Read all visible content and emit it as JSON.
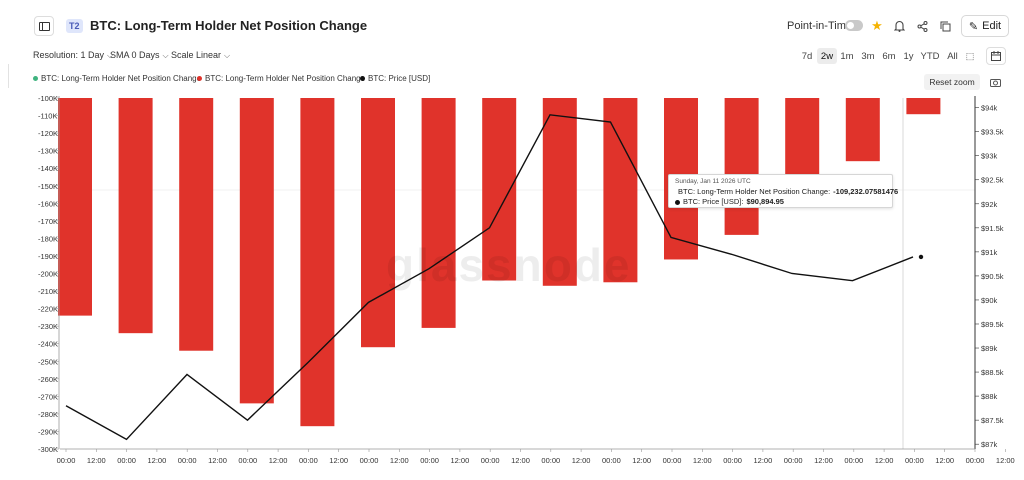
{
  "header": {
    "tier_badge": "T2",
    "title": "BTC: Long-Term Holder Net Position Change",
    "point_in_time_label": "Point-in-Time",
    "edit_label": "Edit"
  },
  "controls": {
    "resolution": "Resolution: 1 Day",
    "sma": "SMA 0 Days",
    "scale": "Scale Linear",
    "ranges": [
      "7d",
      "2w",
      "1m",
      "3m",
      "6m",
      "1y",
      "YTD",
      "All"
    ],
    "active_range": "2w"
  },
  "legend": {
    "items": [
      {
        "label": "BTC: Long-Term Holder Net Position Change",
        "color": "#3fb37f"
      },
      {
        "label": "BTC: Long-Term Holder Net Position Change",
        "color": "#e0332b"
      },
      {
        "label": "BTC: Price [USD]",
        "color": "#111111"
      }
    ],
    "reset_zoom": "Reset zoom"
  },
  "tooltip": {
    "date": "Sunday, Jan 11 2026 UTC",
    "row1_label": "BTC: Long-Term Holder Net Position Change:",
    "row1_value": "-109,232.07581476",
    "row2_label": "BTC: Price [USD]:",
    "row2_value": "$90,894.95"
  },
  "watermark": "glassnode",
  "chart_data": {
    "type": "bar",
    "x_ticks": [
      "00:00",
      "12:00",
      "00:00",
      "12:00",
      "00:00",
      "12:00",
      "00:00",
      "12:00",
      "00:00",
      "12:00",
      "00:00",
      "12:00",
      "00:00",
      "12:00",
      "00:00",
      "12:00",
      "00:00",
      "12:00",
      "00:00",
      "12:00",
      "00:00",
      "12:00",
      "00:00",
      "12:00",
      "00:00",
      "12:00",
      "00:00",
      "12:00",
      "00:00",
      "12:00",
      "00:00",
      "12:00"
    ],
    "y_left_ticks": [
      "-100K",
      "-110K",
      "-120K",
      "-130K",
      "-140K",
      "-150K",
      "-160K",
      "-170K",
      "-180K",
      "-190K",
      "-200K",
      "-210K",
      "-220K",
      "-230K",
      "-240K",
      "-250K",
      "-260K",
      "-270K",
      "-280K",
      "-290K",
      "-300K"
    ],
    "y_left_range": [
      -300000,
      -100000
    ],
    "y_right_ticks": [
      "$94k",
      "$93.5k",
      "$93k",
      "$92.5k",
      "$92k",
      "$91.5k",
      "$91k",
      "$90.5k",
      "$90k",
      "$89.5k",
      "$89k",
      "$88.5k",
      "$88k",
      "$87.5k",
      "$87k"
    ],
    "y_right_range": [
      86900,
      94200
    ],
    "series": [
      {
        "name": "BTC: Long-Term Holder Net Position Change",
        "kind": "bar",
        "color": "#e0332b",
        "values": [
          -224000,
          -234000,
          -244000,
          -274000,
          -287000,
          -242000,
          -231000,
          -204000,
          -207000,
          -205000,
          -192000,
          -178000,
          -144000,
          -136000,
          -109232
        ]
      },
      {
        "name": "BTC: Price [USD]",
        "kind": "line",
        "color": "#111111",
        "values": [
          87800,
          87100,
          88450,
          87500,
          88700,
          89950,
          90650,
          91500,
          93850,
          93700,
          91300,
          90950,
          90550,
          90400,
          90894.95
        ]
      }
    ],
    "grid": true,
    "legend_position": "top-left"
  }
}
